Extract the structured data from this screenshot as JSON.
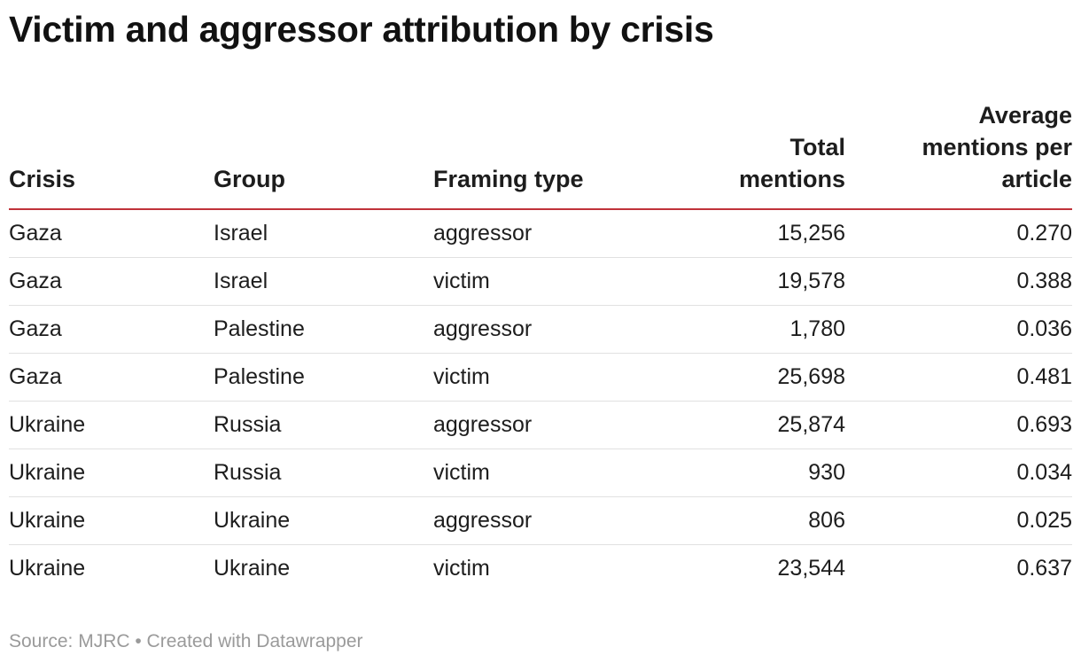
{
  "chart_data": {
    "type": "table",
    "title": "Victim and aggressor attribution by crisis",
    "columns": [
      "Crisis",
      "Group",
      "Framing type",
      "Total mentions",
      "Average mentions per article"
    ],
    "rows": [
      [
        "Gaza",
        "Israel",
        "aggressor",
        "15,256",
        "0.270"
      ],
      [
        "Gaza",
        "Israel",
        "victim",
        "19,578",
        "0.388"
      ],
      [
        "Gaza",
        "Palestine",
        "aggressor",
        "1,780",
        "0.036"
      ],
      [
        "Gaza",
        "Palestine",
        "victim",
        "25,698",
        "0.481"
      ],
      [
        "Ukraine",
        "Russia",
        "aggressor",
        "25,874",
        "0.693"
      ],
      [
        "Ukraine",
        "Russia",
        "victim",
        "930",
        "0.034"
      ],
      [
        "Ukraine",
        "Ukraine",
        "aggressor",
        "806",
        "0.025"
      ],
      [
        "Ukraine",
        "Ukraine",
        "victim",
        "23,544",
        "0.637"
      ]
    ],
    "source": "Source: MJRC • Created with Datawrapper"
  },
  "colors": {
    "header_rule": "#c0323a",
    "row_rule": "#e1e1e1",
    "source_text": "#9a9a9a"
  }
}
